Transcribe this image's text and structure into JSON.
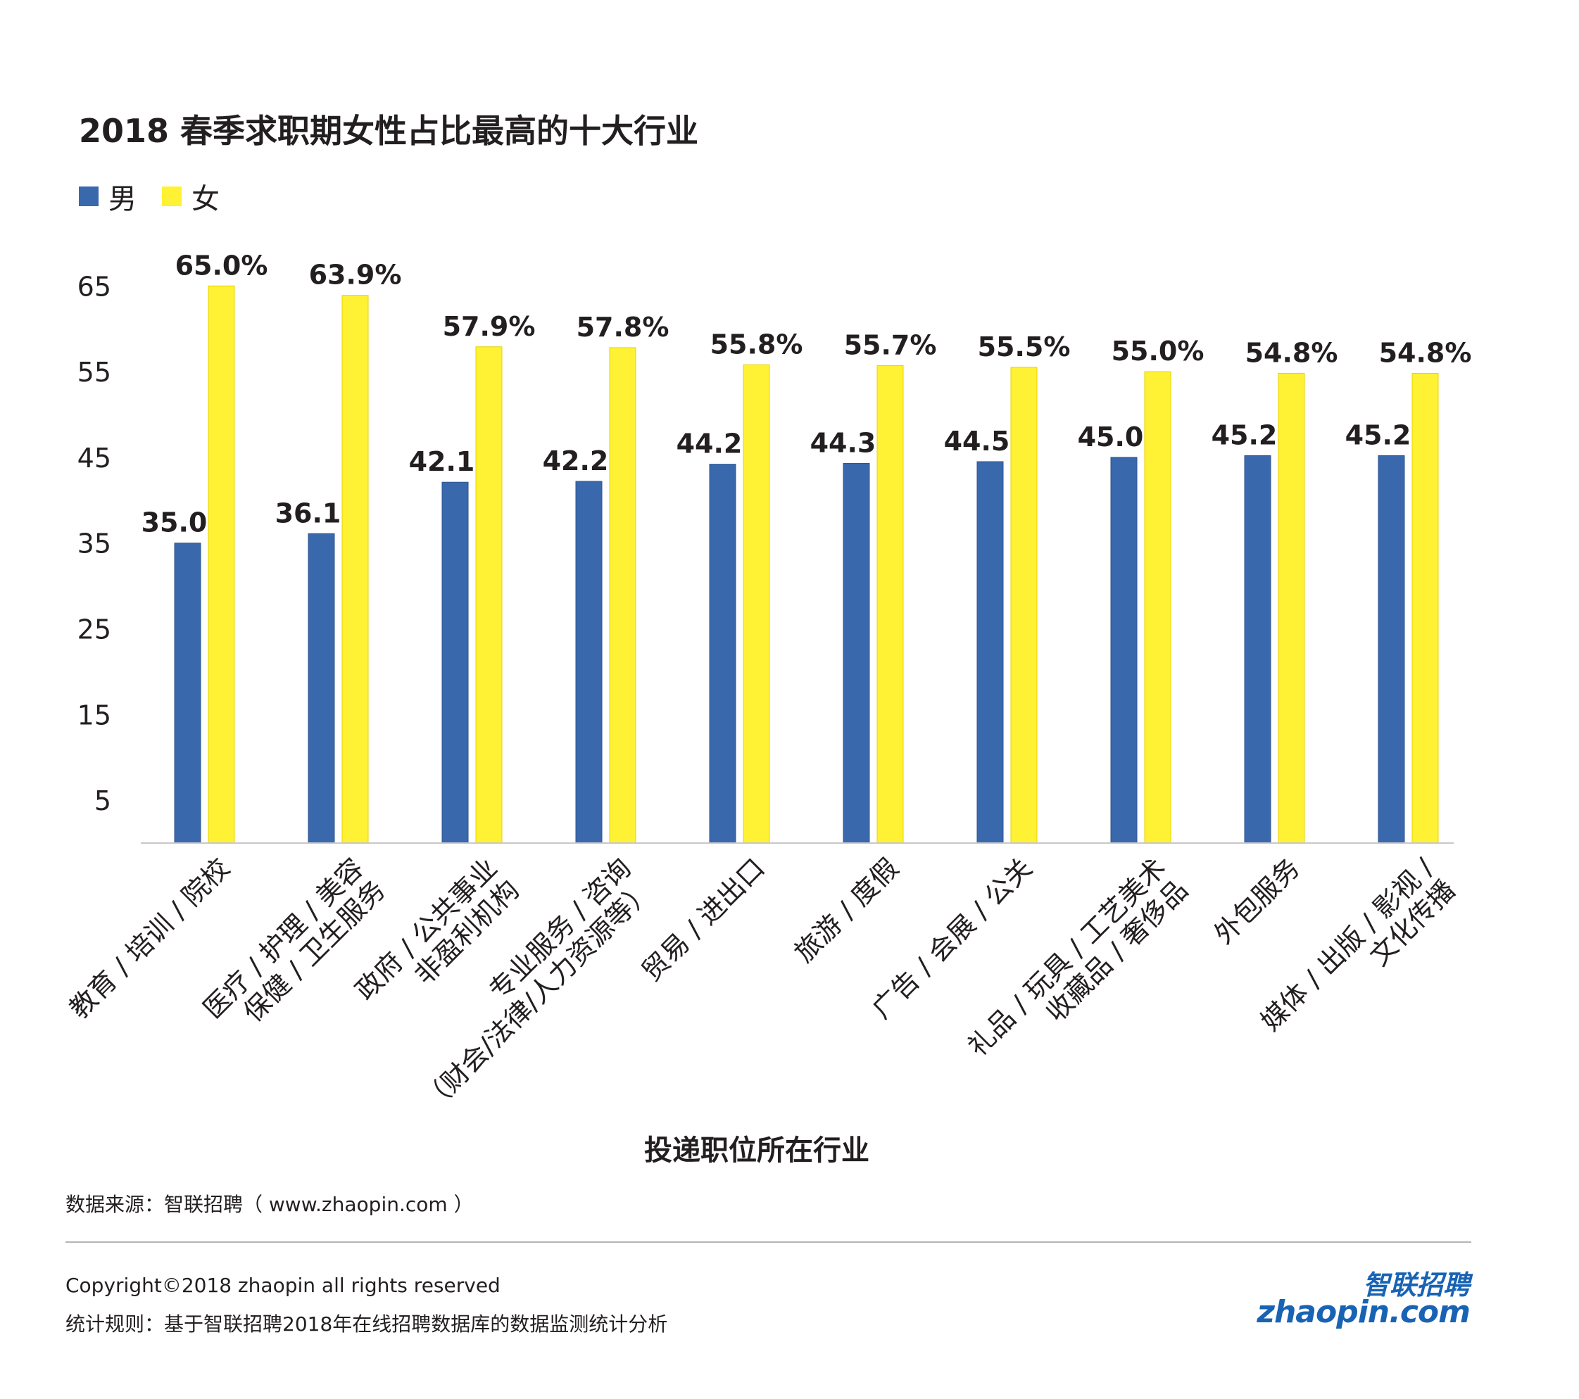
{
  "chart_data": {
    "type": "bar",
    "title": "2018 春季求职期女性占比最高的十大行业",
    "xlabel": "投递职位所在行业",
    "ylabel": "",
    "ylim": [
      0,
      68
    ],
    "yticks": [
      5,
      15,
      25,
      35,
      45,
      55,
      65
    ],
    "grid": false,
    "legend_position": "top-left",
    "categories": [
      [
        "教育 / 培训 / 院校"
      ],
      [
        "医疗 / 护理 / 美容",
        "保健 / 卫生服务"
      ],
      [
        "政府 / 公共事业",
        "非盈利机构"
      ],
      [
        "专业服务 / 咨询",
        "（财会/法律/人力资源等）"
      ],
      [
        "贸易 / 进出口"
      ],
      [
        "旅游 / 度假"
      ],
      [
        "广告 / 会展 / 公关"
      ],
      [
        "礼品 / 玩具 / 工艺美术",
        "收藏品 / 奢侈品"
      ],
      [
        "外包服务"
      ],
      [
        "媒体 / 出版 / 影视 /",
        "文化传播"
      ]
    ],
    "series": [
      {
        "name": "男",
        "color": "#3a68ad",
        "values": [
          35.0,
          36.1,
          42.1,
          42.2,
          44.2,
          44.3,
          44.5,
          45.0,
          45.2,
          45.2
        ],
        "labels": [
          "35.0%",
          "36.1%",
          "42.1%",
          "42.2%",
          "44.2%",
          "44.3%",
          "44.5%",
          "45.0%",
          "45.2%",
          "45.2%"
        ]
      },
      {
        "name": "女",
        "color": "#fff133",
        "values": [
          65.0,
          63.9,
          57.9,
          57.8,
          55.8,
          55.7,
          55.5,
          55.0,
          54.8,
          54.8
        ],
        "labels": [
          "65.0%",
          "63.9%",
          "57.9%",
          "57.8%",
          "55.8%",
          "55.7%",
          "55.5%",
          "55.0%",
          "54.8%",
          "54.8%"
        ]
      }
    ]
  },
  "footer": {
    "source": "数据来源：智联招聘（ www.zhaopin.com ）",
    "copyright": "Copyright©2018 zhaopin all rights reserved",
    "rule": "统计规则：基于智联招聘2018年在线招聘数据库的数据监测统计分析"
  },
  "logo": {
    "cn": "智联招聘",
    "en": "zhaopin.com"
  }
}
